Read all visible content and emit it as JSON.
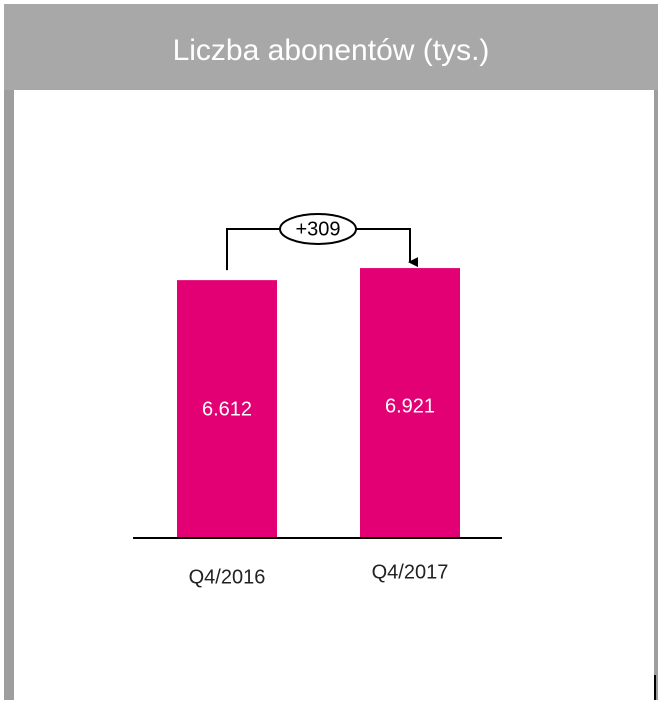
{
  "chart_data": {
    "type": "bar",
    "title": "Liczba abonentów (tys.)",
    "categories": [
      "Q4/2016",
      "Q4/2017"
    ],
    "values": [
      6612,
      6921
    ],
    "value_labels": [
      "6.612",
      "6.921"
    ],
    "color": "#e20074",
    "ylim": [
      0,
      8000
    ],
    "annotation": "+309"
  }
}
